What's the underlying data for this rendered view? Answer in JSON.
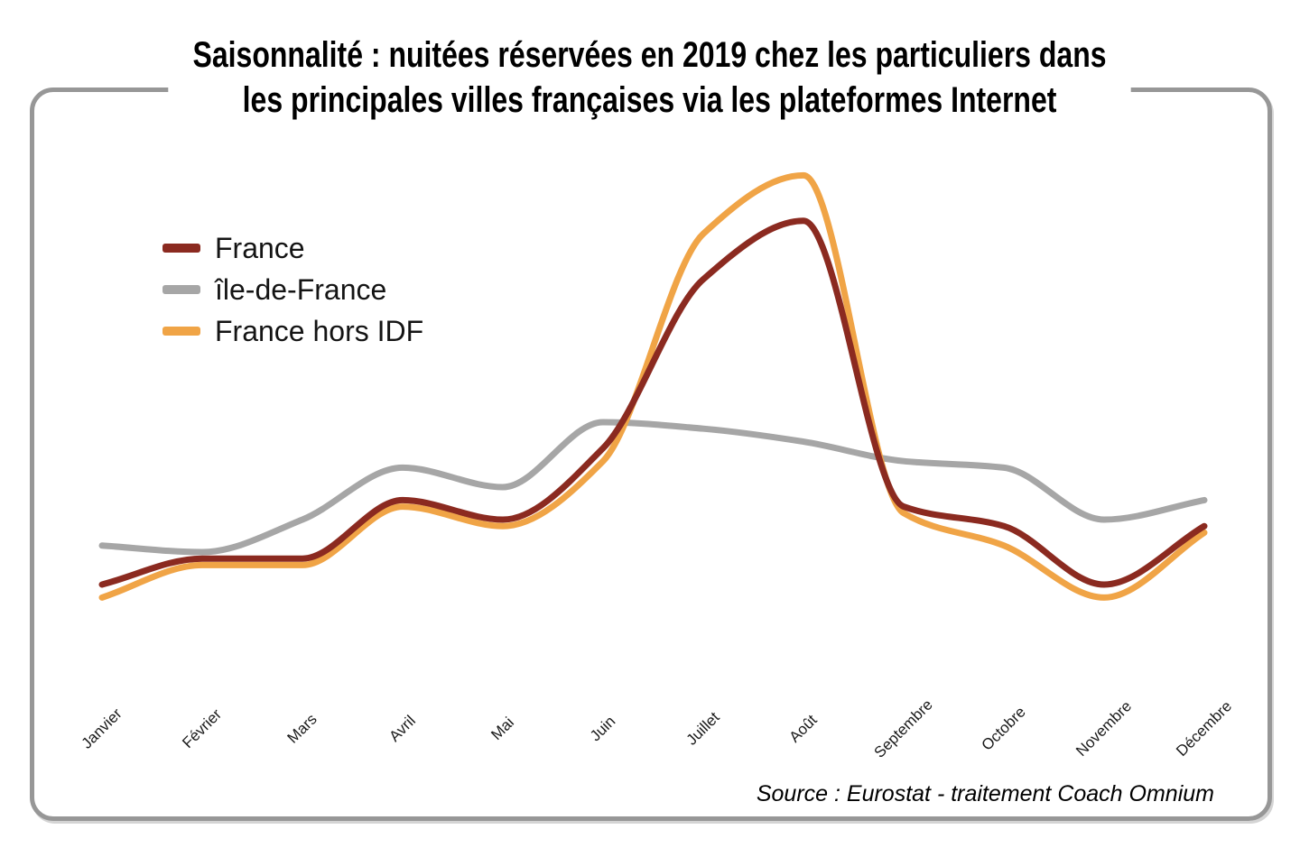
{
  "title": {
    "line1": "Saisonnalité : nuitées réservées en 2019 chez les particuliers dans",
    "line2": "les principales villes françaises via les plateformes Internet"
  },
  "source": {
    "text": "Source : Eurostat - traitement Coach Omnium"
  },
  "frame_color": "#979797",
  "chart_data": {
    "type": "line",
    "title": "Saisonnalité : nuitées réservées en 2019 chez les particuliers dans les principales villes françaises via les plateformes Internet",
    "categories": [
      "Janvier",
      "Février",
      "Mars",
      "Avril",
      "Mai",
      "Juin",
      "Juillet",
      "Août",
      "Septembre",
      "Octobre",
      "Novembre",
      "Décembre"
    ],
    "series": [
      {
        "name": "France",
        "color": "#8B2A20",
        "values": [
          35,
          39,
          39,
          48,
          45,
          56,
          82,
          91,
          47,
          44,
          35,
          44
        ]
      },
      {
        "name": "île-de-France",
        "color": "#A6A6A6",
        "values": [
          41,
          40,
          45,
          53,
          50,
          60,
          59,
          57,
          54,
          53,
          45,
          48
        ]
      },
      {
        "name": "France hors IDF",
        "color": "#F0A446",
        "values": [
          33,
          38,
          38,
          47,
          44,
          54,
          89,
          98,
          46,
          41,
          33,
          43
        ]
      }
    ],
    "xlabel": "",
    "ylabel": "",
    "value_scale": "relative index 0-100 (no y-axis shown in source chart)",
    "ylim": [
      0,
      100
    ],
    "grid": false,
    "legend_position": "upper-left"
  }
}
